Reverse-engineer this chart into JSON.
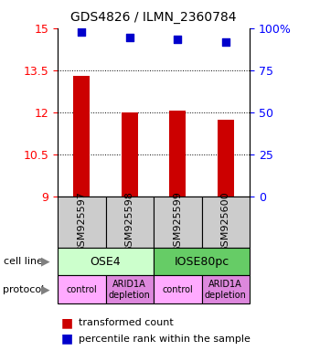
{
  "title": "GDS4826 / ILMN_2360784",
  "samples": [
    "GSM925597",
    "GSM925598",
    "GSM925599",
    "GSM925600"
  ],
  "bar_values": [
    13.3,
    12.0,
    12.05,
    11.75
  ],
  "scatter_values": [
    14.85,
    14.65,
    14.6,
    14.5
  ],
  "ylim_left": [
    9,
    15
  ],
  "yticks_left": [
    9,
    10.5,
    12,
    13.5,
    15
  ],
  "yticks_right": [
    0,
    25,
    50,
    75,
    100
  ],
  "bar_color": "#cc0000",
  "scatter_color": "#0000cc",
  "cell_line_labels": [
    "OSE4",
    "IOSE80pc"
  ],
  "cell_line_spans": [
    [
      0,
      1
    ],
    [
      2,
      3
    ]
  ],
  "cell_line_colors": [
    "#ccffcc",
    "#66cc66"
  ],
  "protocol_labels": [
    "control",
    "ARID1A\ndepletion",
    "control",
    "ARID1A\ndepletion"
  ],
  "protocol_color_light": "#ffaaff",
  "protocol_color_dark": "#dd88dd",
  "sample_box_color": "#cccccc",
  "legend_bar_label": "transformed count",
  "legend_scatter_label": "percentile rank within the sample",
  "cell_line_label": "cell line",
  "protocol_label": "protocol"
}
